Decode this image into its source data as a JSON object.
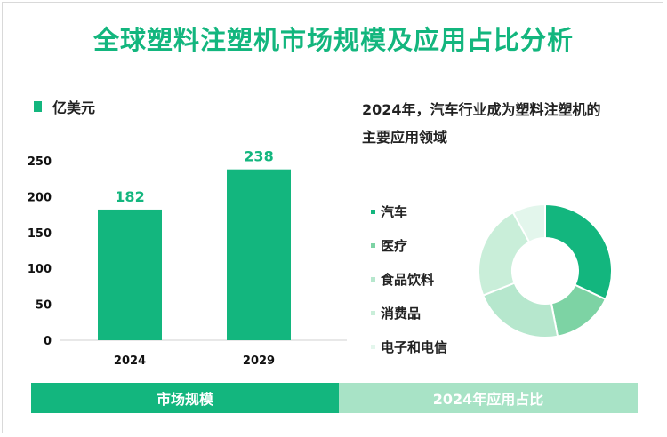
{
  "title": "全球塑料注塑机市场规模及应用占比分析",
  "chart_data": [
    {
      "type": "bar",
      "legend_label": "亿美元",
      "categories": [
        "2024",
        "2029"
      ],
      "values": [
        182,
        238
      ],
      "ylim": [
        0,
        250
      ],
      "yticks": [
        0,
        50,
        100,
        150,
        200,
        250
      ],
      "color": "#13b67e"
    },
    {
      "type": "pie",
      "title": "2024年，汽车行业成为塑料注塑机的主要应用领域",
      "title_lines": [
        "2024年，汽车行业成为塑料注塑机的",
        "主要应用领域"
      ],
      "labels": [
        "汽车",
        "医疗",
        "食品饮料",
        "消费品",
        "电子和电信"
      ],
      "values": [
        32,
        15,
        22,
        23,
        8
      ],
      "colors": [
        "#13b67e",
        "#7dd3a4",
        "#b6e7cd",
        "#c9eed9",
        "#e3f6ec"
      ]
    }
  ],
  "footer": {
    "left": "市场规模",
    "right": "2024年应用占比"
  }
}
